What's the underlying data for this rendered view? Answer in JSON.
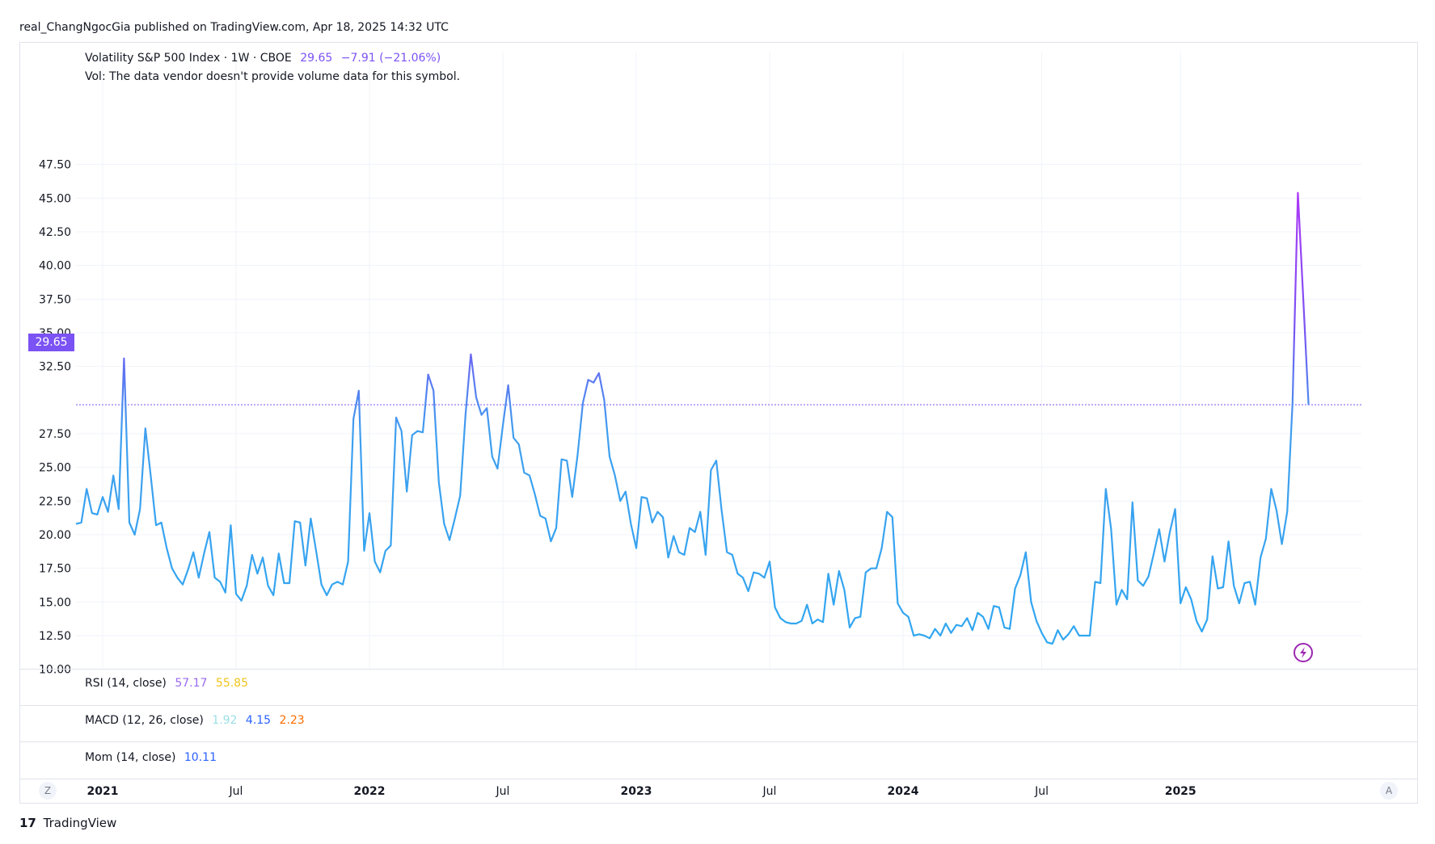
{
  "header": {
    "published_line": "real_ChangNgocGia published on TradingView.com, Apr 18, 2025 14:32 UTC"
  },
  "legend": {
    "symbol": "Volatility S&P 500 Index · 1W · CBOE",
    "price": "29.65",
    "change": "−7.91 (−21.06%)",
    "vol_note": "Vol: The data vendor doesn't provide volume data for this symbol."
  },
  "indicators": {
    "rsi": {
      "label": "RSI (14, close)",
      "v1": "57.17",
      "v2": "55.85"
    },
    "macd": {
      "label": "MACD (12, 26, close)",
      "v1": "1.92",
      "v2": "4.15",
      "v3": "2.23"
    },
    "mom": {
      "label": "Mom (14, close)",
      "v1": "10.11"
    }
  },
  "buttons": {
    "left": "Z",
    "right": "A"
  },
  "footer": {
    "brand": "TradingView",
    "mark": "17"
  },
  "colors": {
    "line_low": "#2ea8f0",
    "line_high": "#c12ef7",
    "price_tag": "#7b52f3",
    "rsi1": "#9a6bf0",
    "rsi2": "#f0c419",
    "macd1": "#9adfe8",
    "macd2": "#2962ff",
    "macd3": "#ff6d00",
    "mom": "#2962ff"
  },
  "chart_data": {
    "type": "line",
    "title": "Volatility S&P 500 Index · 1W · CBOE",
    "xlabel": "",
    "ylabel": "",
    "ylim": [
      9.0,
      48.0
    ],
    "y_ticks": [
      "47.50",
      "45.00",
      "42.50",
      "40.00",
      "37.50",
      "35.00",
      "32.50",
      "27.50",
      "25.00",
      "22.50",
      "20.00",
      "17.50",
      "15.00",
      "12.50",
      "10.00"
    ],
    "x_ticks": [
      {
        "label": "2021",
        "bold": true,
        "week": 5
      },
      {
        "label": "Jul",
        "bold": false,
        "week": 30
      },
      {
        "label": "2022",
        "bold": true,
        "week": 55
      },
      {
        "label": "Jul",
        "bold": false,
        "week": 80
      },
      {
        "label": "2023",
        "bold": true,
        "week": 105
      },
      {
        "label": "Jul",
        "bold": false,
        "week": 130
      },
      {
        "label": "2024",
        "bold": true,
        "week": 155
      },
      {
        "label": "Jul",
        "bold": false,
        "week": 181
      },
      {
        "label": "2025",
        "bold": true,
        "week": 207
      }
    ],
    "last_value": 29.65,
    "values": [
      20.8,
      20.9,
      23.4,
      21.6,
      21.5,
      22.8,
      21.7,
      24.4,
      21.9,
      33.1,
      20.9,
      20.0,
      21.9,
      27.9,
      24.4,
      20.7,
      20.9,
      19.0,
      17.5,
      16.8,
      16.3,
      17.4,
      18.7,
      16.8,
      18.6,
      20.2,
      16.8,
      16.5,
      15.7,
      20.7,
      15.6,
      15.1,
      16.2,
      18.5,
      17.1,
      18.3,
      16.2,
      15.5,
      18.6,
      16.4,
      16.4,
      21.0,
      20.9,
      17.7,
      21.2,
      18.8,
      16.3,
      15.5,
      16.3,
      16.5,
      16.3,
      18.0,
      28.6,
      30.7,
      18.8,
      21.6,
      18.0,
      17.2,
      18.8,
      19.2,
      28.7,
      27.7,
      23.2,
      27.4,
      27.7,
      27.6,
      31.9,
      30.7,
      23.9,
      20.8,
      19.6,
      21.2,
      22.9,
      28.9,
      33.4,
      30.2,
      28.9,
      29.4,
      25.8,
      24.9,
      28.1,
      31.1,
      27.2,
      26.7,
      24.6,
      24.4,
      23.0,
      21.4,
      21.2,
      19.5,
      20.5,
      25.6,
      25.5,
      22.8,
      25.9,
      29.8,
      31.5,
      31.3,
      32.0,
      30.0,
      25.8,
      24.4,
      22.5,
      23.2,
      20.8,
      19.0,
      22.8,
      22.7,
      20.9,
      21.7,
      21.3,
      18.3,
      19.9,
      18.7,
      18.5,
      20.5,
      20.2,
      21.7,
      18.5,
      24.8,
      25.5,
      21.8,
      18.7,
      18.5,
      17.1,
      16.8,
      15.8,
      17.2,
      17.1,
      16.8,
      18.0,
      14.6,
      13.8,
      13.5,
      13.4,
      13.4,
      13.6,
      14.8,
      13.4,
      13.7,
      13.5,
      17.1,
      14.8,
      17.3,
      15.9,
      13.1,
      13.8,
      13.9,
      17.2,
      17.5,
      17.5,
      19.0,
      21.7,
      21.3,
      14.9,
      14.2,
      13.9,
      12.5,
      12.6,
      12.5,
      12.3,
      13.0,
      12.5,
      13.4,
      12.7,
      13.3,
      13.2,
      13.8,
      12.9,
      14.2,
      13.9,
      13.0,
      14.7,
      14.6,
      13.1,
      13.0,
      16.0,
      17.0,
      18.7,
      15.0,
      13.6,
      12.7,
      12.0,
      11.9,
      12.9,
      12.2,
      12.6,
      13.2,
      12.5,
      12.5,
      12.5,
      16.5,
      16.4,
      23.4,
      20.4,
      14.8,
      15.9,
      15.2,
      22.4,
      16.6,
      16.2,
      16.9,
      18.6,
      20.4,
      18.0,
      20.2,
      21.9,
      14.9,
      16.1,
      15.2,
      13.6,
      12.8,
      13.7,
      18.4,
      16.0,
      16.1,
      19.5,
      16.2,
      14.9,
      16.4,
      16.5,
      14.8,
      18.3,
      19.7,
      23.4,
      21.8,
      19.3,
      21.7,
      29.8,
      45.4,
      37.6,
      29.65
    ]
  }
}
